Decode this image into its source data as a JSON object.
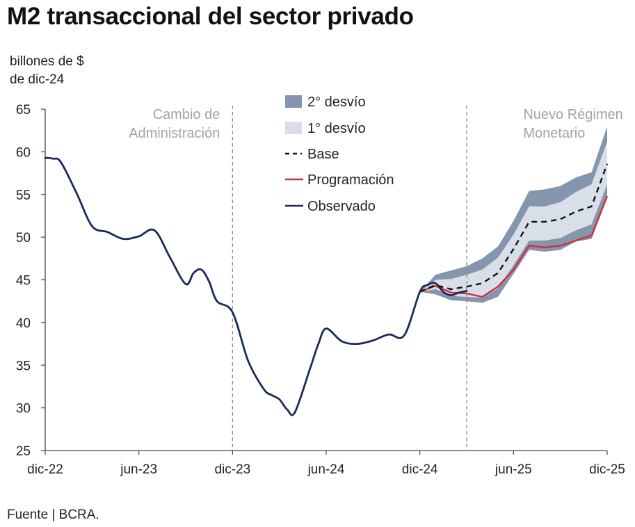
{
  "title": "M2 transaccional del sector privado",
  "unit_line1": "billones de $",
  "unit_line2": "de dic-24",
  "source": "Fuente | BCRA.",
  "chart_data": {
    "type": "line",
    "ylim": [
      25,
      65
    ],
    "y_ticks": [
      25,
      30,
      35,
      40,
      45,
      50,
      55,
      60,
      65
    ],
    "x_ticks": [
      "dic-22",
      "jun-23",
      "dic-23",
      "jun-24",
      "dic-24",
      "jun-25",
      "dic-25"
    ],
    "x_tick_positions": [
      0,
      6,
      12,
      18,
      24,
      30,
      36
    ],
    "x_unit": "months from dic-22",
    "grid": false,
    "legend_position": "top-center",
    "annotations": [
      {
        "text": [
          "Cambio de",
          "Administración"
        ],
        "x": 12,
        "align": "before"
      },
      {
        "text": [
          "Nuevo Régimen",
          "Monetario"
        ],
        "x": 30,
        "align": "after"
      }
    ],
    "vlines": [
      12,
      27
    ],
    "legend": {
      "band2": "2° desvío",
      "band1": "1° desvío",
      "base": "Base",
      "program": "Programación",
      "observed": "Observado"
    },
    "colors": {
      "band2": "#8496ad",
      "band1": "#d9dfe9",
      "base": "#111111",
      "program": "#d62b3c",
      "observed": "#1a2a5a",
      "axis": "#444444",
      "annotation": "#a3a3a3"
    },
    "series": [
      {
        "name": "Observado",
        "x": [
          0,
          0.5,
          1,
          2,
          3,
          4,
          5,
          6,
          7,
          8,
          9,
          9.5,
          10,
          10.5,
          11,
          12,
          13,
          14,
          14.5,
          15,
          15.5,
          16,
          17,
          17.5,
          18,
          19,
          20,
          21,
          22,
          23,
          24,
          24.5,
          25,
          25.5,
          26,
          26.5,
          27
        ],
        "y": [
          59.3,
          59.2,
          58.8,
          55.2,
          51.3,
          50.6,
          49.8,
          50.1,
          50.8,
          47.6,
          44.5,
          45.8,
          46.2,
          44.8,
          42.5,
          41.2,
          35.5,
          32.2,
          31.5,
          31.0,
          29.8,
          29.5,
          34.8,
          37.5,
          39.3,
          37.8,
          37.5,
          37.9,
          38.6,
          38.5,
          43.6,
          44.4,
          44.6,
          43.6,
          43.2,
          43.5,
          43.7
        ]
      },
      {
        "name": "Programación",
        "x": [
          24,
          25,
          26,
          27,
          28,
          29,
          30,
          31,
          32,
          33,
          34,
          35,
          36
        ],
        "y": [
          43.6,
          44.3,
          43.5,
          43.4,
          43.0,
          44.2,
          46.2,
          49.0,
          48.8,
          49.0,
          49.6,
          50.2,
          54.8
        ]
      },
      {
        "name": "Base",
        "x": [
          24,
          25,
          26,
          27,
          28,
          29,
          30,
          31,
          32,
          33,
          34,
          35,
          36
        ],
        "y": [
          43.6,
          44.4,
          43.9,
          44.2,
          44.6,
          45.8,
          48.6,
          51.8,
          51.8,
          52.1,
          53.0,
          53.6,
          58.6
        ]
      },
      {
        "name": "1° desvío",
        "x": [
          24,
          25,
          26,
          27,
          28,
          29,
          30,
          31,
          32,
          33,
          34,
          35,
          36
        ],
        "upper": [
          43.6,
          45.0,
          45.1,
          45.6,
          46.2,
          47.6,
          50.3,
          53.6,
          53.6,
          54.1,
          55.3,
          56.2,
          61.2
        ],
        "lower": [
          43.6,
          43.9,
          43.1,
          43.0,
          42.9,
          44.0,
          46.7,
          49.6,
          49.6,
          49.9,
          50.8,
          51.5,
          56.2
        ]
      },
      {
        "name": "2° desvío",
        "x": [
          24,
          25,
          26,
          27,
          28,
          29,
          30,
          31,
          32,
          33,
          34,
          35,
          36
        ],
        "upper": [
          43.6,
          45.6,
          46.1,
          46.6,
          47.5,
          48.9,
          51.9,
          55.4,
          55.6,
          56.0,
          57.0,
          57.6,
          63.0
        ],
        "lower": [
          43.6,
          43.3,
          42.6,
          42.5,
          42.3,
          43.0,
          45.7,
          48.5,
          48.3,
          48.5,
          49.5,
          49.8,
          54.6
        ]
      }
    ]
  }
}
